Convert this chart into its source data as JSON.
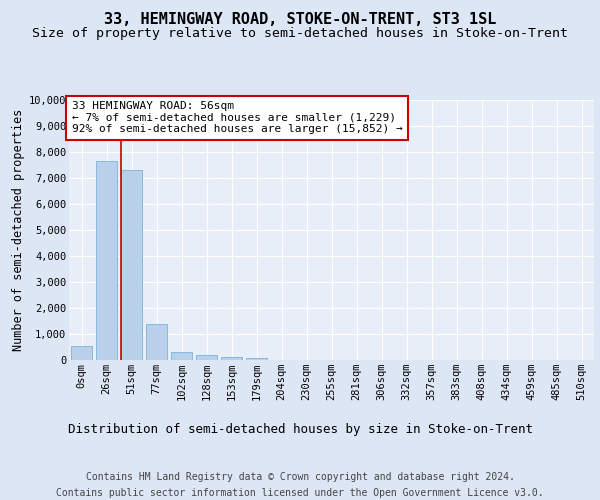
{
  "title": "33, HEMINGWAY ROAD, STOKE-ON-TRENT, ST3 1SL",
  "subtitle": "Size of property relative to semi-detached houses in Stoke-on-Trent",
  "xlabel": "Distribution of semi-detached houses by size in Stoke-on-Trent",
  "ylabel": "Number of semi-detached properties",
  "footer_line1": "Contains HM Land Registry data © Crown copyright and database right 2024.",
  "footer_line2": "Contains public sector information licensed under the Open Government Licence v3.0.",
  "annotation_title": "33 HEMINGWAY ROAD: 56sqm",
  "annotation_line1": "← 7% of semi-detached houses are smaller (1,229)",
  "annotation_line2": "92% of semi-detached houses are larger (15,852) →",
  "bar_categories": [
    "0sqm",
    "26sqm",
    "51sqm",
    "77sqm",
    "102sqm",
    "128sqm",
    "153sqm",
    "179sqm",
    "204sqm",
    "230sqm",
    "255sqm",
    "281sqm",
    "306sqm",
    "332sqm",
    "357sqm",
    "383sqm",
    "408sqm",
    "434sqm",
    "459sqm",
    "485sqm",
    "510sqm"
  ],
  "bar_values": [
    550,
    7650,
    7300,
    1370,
    310,
    175,
    120,
    85,
    0,
    0,
    0,
    0,
    0,
    0,
    0,
    0,
    0,
    0,
    0,
    0,
    0
  ],
  "bar_color": "#b8d0ea",
  "bar_edge_color": "#6aabd2",
  "ylim": [
    0,
    10000
  ],
  "yticks": [
    0,
    1000,
    2000,
    3000,
    4000,
    5000,
    6000,
    7000,
    8000,
    9000,
    10000
  ],
  "bg_color": "#dce6f5",
  "plot_bg_color": "#e8eef8",
  "grid_color": "#ffffff",
  "annotation_box_color": "#ffffff",
  "annotation_box_edge": "#cc0000",
  "red_line_color": "#cc0000",
  "title_fontsize": 11,
  "subtitle_fontsize": 9.5,
  "xlabel_fontsize": 9,
  "ylabel_fontsize": 8.5,
  "tick_fontsize": 7.5,
  "annotation_fontsize": 8,
  "footer_fontsize": 7
}
